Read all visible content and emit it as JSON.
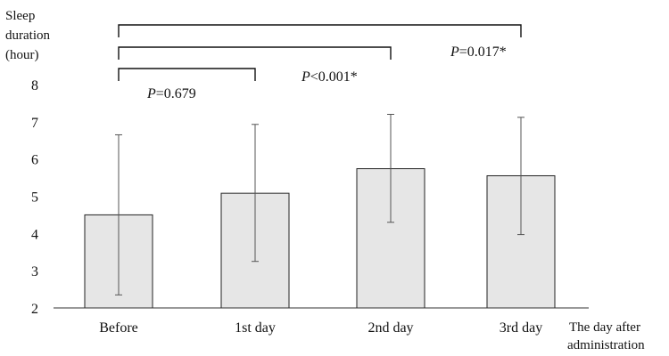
{
  "chart_data": {
    "type": "bar",
    "ylabel_lines": [
      "Sleep",
      "duration",
      "(hour)"
    ],
    "xlabel_lines": [
      "The day after",
      "administration"
    ],
    "categories": [
      "Before",
      "1st day",
      "2nd day",
      "3rd day"
    ],
    "values": [
      4.5,
      5.08,
      5.74,
      5.55
    ],
    "error_bars": [
      {
        "low": 2.35,
        "high": 6.65
      },
      {
        "low": 3.25,
        "high": 6.93
      },
      {
        "low": 4.3,
        "high": 7.2
      },
      {
        "low": 3.97,
        "high": 7.12
      }
    ],
    "ylim": [
      2,
      8
    ],
    "yticks": [
      "2",
      "3",
      "4",
      "5",
      "6",
      "7",
      "8"
    ],
    "grid": false,
    "comparisons": [
      {
        "from": 0,
        "to": 1,
        "label_prefix": "P",
        "label_rest": "=0.679"
      },
      {
        "from": 0,
        "to": 2,
        "label_prefix": "P",
        "label_rest": "<0.001*"
      },
      {
        "from": 0,
        "to": 3,
        "label_prefix": "P",
        "label_rest": "=0.017*"
      }
    ],
    "colors": {
      "bar_fill": "#e6e6e6",
      "bar_stroke": "#222222"
    }
  }
}
